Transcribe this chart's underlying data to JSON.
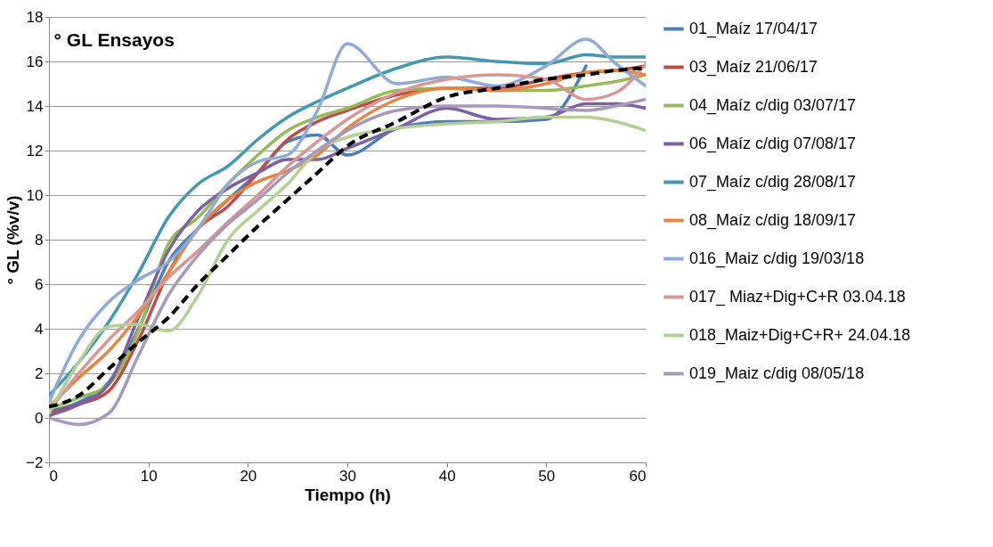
{
  "chart_data": {
    "type": "line",
    "title": "° GL Ensayos",
    "xlabel": "Tiempo (h)",
    "ylabel": "° GL (%v/v)",
    "x": [
      0,
      3,
      6,
      9,
      12,
      15,
      18,
      21,
      24,
      27,
      30,
      35,
      40,
      45,
      50,
      54,
      57,
      60
    ],
    "xlim": [
      0,
      60
    ],
    "xticks": [
      0,
      10,
      20,
      30,
      40,
      50,
      60
    ],
    "ylim": [
      -2,
      18
    ],
    "yticks": [
      -2,
      0,
      2,
      4,
      6,
      8,
      10,
      12,
      14,
      16,
      18
    ],
    "grid": "y",
    "legend": "right",
    "line_style": "solid",
    "series": [
      {
        "name": "01_Maíz 17/04/17",
        "color": "#4a7ebb",
        "values": [
          0.3,
          0.7,
          1.6,
          4.0,
          7.0,
          8.5,
          9.8,
          11.0,
          12.4,
          12.7,
          11.8,
          13.0,
          13.3,
          13.3,
          13.4,
          15.8,
          null,
          null
        ]
      },
      {
        "name": "03_Maíz 21/06/17",
        "color": "#be4b48",
        "values": [
          0.2,
          0.6,
          1.2,
          3.5,
          6.5,
          8.5,
          9.5,
          11.0,
          12.5,
          13.3,
          13.8,
          14.5,
          14.8,
          14.8,
          15.2,
          15.5,
          15.6,
          15.8
        ]
      },
      {
        "name": "04_Maíz c/dig 03/07/17",
        "color": "#98b954",
        "values": [
          0.4,
          0.9,
          1.5,
          3.9,
          7.8,
          9.0,
          10.5,
          11.8,
          12.9,
          13.5,
          13.9,
          14.7,
          14.8,
          14.7,
          14.7,
          14.9,
          15.1,
          15.4
        ]
      },
      {
        "name": "06_Maíz c/dig 07/08/17",
        "color": "#7d60a0",
        "values": [
          0.1,
          0.6,
          1.5,
          4.5,
          7.5,
          9.3,
          10.3,
          11.0,
          11.6,
          11.6,
          12.1,
          13.0,
          13.9,
          13.4,
          13.5,
          14.1,
          14.1,
          13.9
        ]
      },
      {
        "name": "07_Maíz c/dig 28/08/17",
        "color": "#4198af",
        "values": [
          1.0,
          2.5,
          4.3,
          6.5,
          9.0,
          10.5,
          11.3,
          12.5,
          13.5,
          14.2,
          14.8,
          15.7,
          16.2,
          16.0,
          15.9,
          16.3,
          16.2,
          16.2
        ]
      },
      {
        "name": "08_Maíz c/dig 18/09/17",
        "color": "#e5853f",
        "values": [
          0.5,
          1.8,
          3.0,
          4.6,
          6.5,
          8.5,
          9.8,
          10.6,
          11.1,
          11.8,
          13.0,
          14.3,
          14.8,
          14.7,
          15.0,
          15.5,
          15.6,
          15.4
        ]
      },
      {
        "name": "016_Maiz c/dig 19/03/18",
        "color": "#8eaad5",
        "values": [
          0.7,
          3.5,
          5.2,
          6.2,
          7.0,
          8.5,
          10.5,
          11.5,
          11.8,
          13.8,
          16.8,
          15.0,
          15.3,
          14.9,
          15.8,
          17.0,
          15.9,
          14.9
        ]
      },
      {
        "name": "017_ Miaz+Dig+C+R 03.04.18",
        "color": "#d99694",
        "values": [
          0.3,
          2.0,
          3.5,
          4.8,
          6.3,
          7.5,
          8.8,
          10.0,
          11.3,
          12.4,
          13.4,
          14.6,
          15.2,
          15.4,
          15.2,
          14.3,
          14.6,
          15.9
        ]
      },
      {
        "name": "018_Maiz+Dig+C+R+ 24.04.18",
        "color": "#b3cf94",
        "values": [
          0.2,
          2.5,
          4.1,
          4.2,
          3.9,
          5.5,
          8.0,
          9.3,
          10.5,
          12.0,
          12.6,
          13.0,
          13.2,
          13.3,
          13.5,
          13.5,
          13.3,
          12.9
        ]
      },
      {
        "name": "019_Maiz c/dig 08/05/18",
        "color": "#a798bd",
        "values": [
          0.0,
          -0.3,
          0.2,
          2.8,
          5.5,
          7.3,
          8.7,
          9.8,
          11.0,
          12.0,
          12.9,
          13.8,
          14.0,
          14.0,
          13.9,
          13.8,
          14.0,
          14.3
        ]
      },
      {
        "color": "#000000",
        "line_style": "dashed",
        "values": [
          0.5,
          1.0,
          2.2,
          3.4,
          4.5,
          6.0,
          7.3,
          8.6,
          9.8,
          11.0,
          12.2,
          13.3,
          14.4,
          14.8,
          15.2,
          15.4,
          15.6,
          15.7
        ]
      }
    ]
  }
}
